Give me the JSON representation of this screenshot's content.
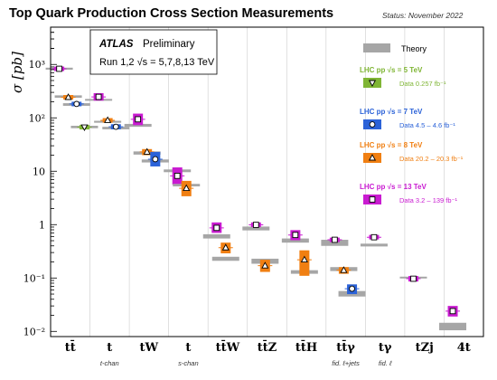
{
  "chart_data": {
    "type": "scatter",
    "title": "Top Quark Production Cross Section Measurements",
    "status": "Status: November 2022",
    "ylabel": "σ [pb]",
    "yscale": "log",
    "ylim": [
      0.008,
      5000
    ],
    "grid": false,
    "legend_position": "right",
    "experiment": "ATLAS",
    "experiment_tag": "Preliminary",
    "run_info": "Run 1,2  √s = 5,7,8,13 TeV",
    "y_ticks": [
      {
        "value": 0.01,
        "label": "10⁻²"
      },
      {
        "value": 0.1,
        "label": "10⁻¹"
      },
      {
        "value": 1,
        "label": "1"
      },
      {
        "value": 10,
        "label": "10"
      },
      {
        "value": 100,
        "label": "10²"
      },
      {
        "value": 1000,
        "label": "10³"
      }
    ],
    "categories": [
      {
        "label": "tt̄",
        "sublabel": ""
      },
      {
        "label": "t",
        "sublabel": "t-chan"
      },
      {
        "label": "tW",
        "sublabel": ""
      },
      {
        "label": "t",
        "sublabel": "s-chan"
      },
      {
        "label": "tt̄W",
        "sublabel": ""
      },
      {
        "label": "tt̄Z",
        "sublabel": ""
      },
      {
        "label": "tt̄H",
        "sublabel": ""
      },
      {
        "label": "tt̄γ",
        "sublabel": "fid. ℓ+jets"
      },
      {
        "label": "tγ",
        "sublabel": "fid. ℓ"
      },
      {
        "label": "tZj",
        "sublabel": ""
      },
      {
        "label": "4t",
        "sublabel": ""
      }
    ],
    "legend": {
      "theory_label": "Theory",
      "entries": [
        {
          "energy_label": "LHC pp  √s = 5 TeV",
          "lumi_label": "Data  0.257 fb⁻¹",
          "color": "#7fb534",
          "marker": "triangle-down"
        },
        {
          "energy_label": "LHC pp  √s = 7 TeV",
          "lumi_label": "Data  4.5 – 4.6 fb⁻¹",
          "color": "#2b62d8",
          "marker": "circle"
        },
        {
          "energy_label": "LHC pp  √s = 8 TeV",
          "lumi_label": "Data  20.2 – 20.3 fb⁻¹",
          "color": "#f07f12",
          "marker": "triangle-up"
        },
        {
          "energy_label": "LHC pp  √s = 13 TeV",
          "lumi_label": "Data  3.2 – 139 fb⁻¹",
          "color": "#c91bd1",
          "marker": "square"
        }
      ]
    },
    "colors": {
      "5": "#7fb534",
      "7": "#2b62d8",
      "8": "#f07f12",
      "13": "#c91bd1",
      "theory": "#a6a6a6",
      "title": "#000000"
    },
    "points": [
      {
        "cat": 0,
        "energy": 7,
        "value": 182,
        "lo": 172,
        "hi": 192,
        "theory_lo": 168,
        "theory_hi": 188
      },
      {
        "cat": 0,
        "energy": 8,
        "value": 243,
        "lo": 230,
        "hi": 256,
        "theory_lo": 238,
        "theory_hi": 264
      },
      {
        "cat": 0,
        "energy": 13,
        "value": 830,
        "lo": 800,
        "hi": 860,
        "theory_lo": 800,
        "theory_hi": 870
      },
      {
        "cat": 0,
        "energy": 5,
        "value": 67,
        "lo": 63,
        "hi": 71,
        "theory_lo": 64,
        "theory_hi": 71
      },
      {
        "cat": 1,
        "energy": 13,
        "value": 247,
        "lo": 210,
        "hi": 290,
        "theory_lo": 210,
        "theory_hi": 225
      },
      {
        "cat": 1,
        "energy": 8,
        "value": 90,
        "lo": 83,
        "hi": 97,
        "theory_lo": 81,
        "theory_hi": 88
      },
      {
        "cat": 1,
        "energy": 7,
        "value": 68,
        "lo": 61,
        "hi": 76,
        "theory_lo": 61,
        "theory_hi": 68
      },
      {
        "cat": 2,
        "energy": 13,
        "value": 94,
        "lo": 73,
        "hi": 120,
        "theory_lo": 68,
        "theory_hi": 77
      },
      {
        "cat": 2,
        "energy": 8,
        "value": 23,
        "lo": 20,
        "hi": 26,
        "theory_lo": 20.5,
        "theory_hi": 23.5
      },
      {
        "cat": 2,
        "energy": 7,
        "value": 16.8,
        "lo": 12.3,
        "hi": 23,
        "theory_lo": 14.6,
        "theory_hi": 16.6
      },
      {
        "cat": 3,
        "energy": 13,
        "value": 8.2,
        "lo": 5.6,
        "hi": 11.8,
        "theory_lo": 9.6,
        "theory_hi": 10.8
      },
      {
        "cat": 3,
        "energy": 8,
        "value": 4.8,
        "lo": 3.4,
        "hi": 6.6,
        "theory_lo": 5.2,
        "theory_hi": 5.8
      },
      {
        "cat": 4,
        "energy": 13,
        "value": 0.87,
        "lo": 0.7,
        "hi": 1.1,
        "theory_lo": 0.55,
        "theory_hi": 0.66
      },
      {
        "cat": 4,
        "energy": 8,
        "value": 0.37,
        "lo": 0.29,
        "hi": 0.46,
        "theory_lo": 0.21,
        "theory_hi": 0.25
      },
      {
        "cat": 5,
        "energy": 13,
        "value": 0.99,
        "lo": 0.9,
        "hi": 1.1,
        "theory_lo": 0.78,
        "theory_hi": 0.92
      },
      {
        "cat": 5,
        "energy": 8,
        "value": 0.17,
        "lo": 0.13,
        "hi": 0.22,
        "theory_lo": 0.185,
        "theory_hi": 0.23
      },
      {
        "cat": 6,
        "energy": 13,
        "value": 0.64,
        "lo": 0.51,
        "hi": 0.79,
        "theory_lo": 0.46,
        "theory_hi": 0.55
      },
      {
        "cat": 6,
        "energy": 8,
        "value": 0.22,
        "lo": 0.11,
        "hi": 0.33,
        "theory_lo": 0.12,
        "theory_hi": 0.14
      },
      {
        "cat": 7,
        "energy": 13,
        "value": 0.52,
        "lo": 0.48,
        "hi": 0.56,
        "theory_lo": 0.4,
        "theory_hi": 0.52
      },
      {
        "cat": 7,
        "energy": 8,
        "value": 0.14,
        "lo": 0.12,
        "hi": 0.16,
        "theory_lo": 0.135,
        "theory_hi": 0.16
      },
      {
        "cat": 7,
        "energy": 7,
        "value": 0.063,
        "lo": 0.05,
        "hi": 0.076,
        "theory_lo": 0.045,
        "theory_hi": 0.057
      },
      {
        "cat": 8,
        "energy": 13,
        "value": 0.58,
        "lo": 0.53,
        "hi": 0.64,
        "theory_lo": 0.39,
        "theory_hi": 0.44
      },
      {
        "cat": 9,
        "energy": 13,
        "value": 0.097,
        "lo": 0.086,
        "hi": 0.109,
        "theory_lo": 0.098,
        "theory_hi": 0.106
      },
      {
        "cat": 10,
        "energy": 13,
        "value": 0.024,
        "lo": 0.019,
        "hi": 0.03,
        "theory_lo": 0.0105,
        "theory_hi": 0.0145
      }
    ]
  }
}
